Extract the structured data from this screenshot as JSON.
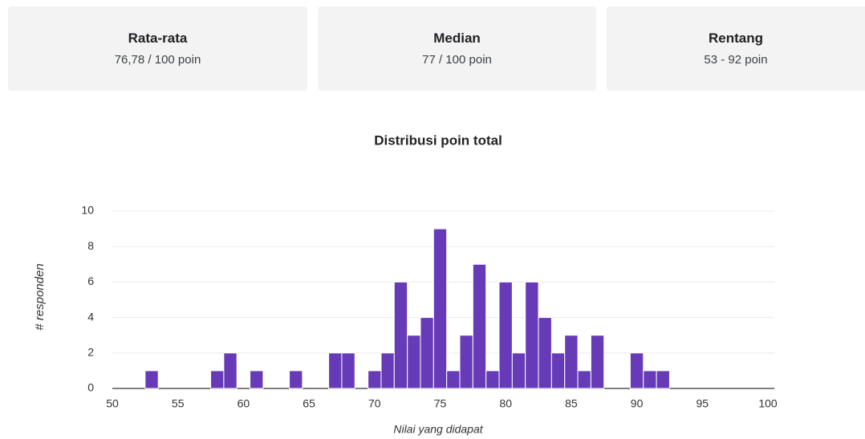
{
  "cards": [
    {
      "title": "Rata-rata",
      "value": "76,78 / 100 poin"
    },
    {
      "title": "Median",
      "value": "77 / 100 poin"
    },
    {
      "title": "Rentang",
      "value": "53 - 92 poin"
    }
  ],
  "chart_data": {
    "type": "histogram",
    "title": "Distribusi poin total",
    "x_label": "Nilai yang didapat",
    "y_label": "# responden",
    "bins": [
      52.5,
      53.5,
      54.5,
      55.5,
      56.5,
      57.5,
      58.5,
      59.5,
      60.5,
      61.5,
      62.5,
      63.5,
      64.5,
      65.5,
      66.5,
      67.5,
      68.5,
      69.5,
      70.5,
      71.5,
      72.5,
      73.5,
      74.5,
      75.5,
      76.5,
      77.5,
      78.5,
      79.5,
      80.5,
      81.5,
      82.5,
      83.5,
      84.5,
      85.5,
      86.5,
      87.5,
      88.5,
      89.5,
      90.5,
      91.5,
      92.5
    ],
    "values": [
      1,
      0,
      0,
      0,
      0,
      1,
      2,
      0,
      1,
      0,
      0,
      1,
      0,
      0,
      2,
      2,
      0,
      1,
      2,
      6,
      3,
      4,
      9,
      1,
      3,
      7,
      1,
      6,
      2,
      6,
      4,
      2,
      3,
      1,
      3,
      0,
      0,
      2,
      1,
      1
    ],
    "color": "#673ab7",
    "xlim": [
      50,
      100
    ],
    "xticks": [
      50,
      55,
      60,
      65,
      70,
      75,
      80,
      85,
      90,
      95,
      100
    ],
    "ylim": [
      0,
      10
    ],
    "yticks": [
      0,
      2,
      4,
      6,
      8,
      10
    ],
    "grid": true
  }
}
